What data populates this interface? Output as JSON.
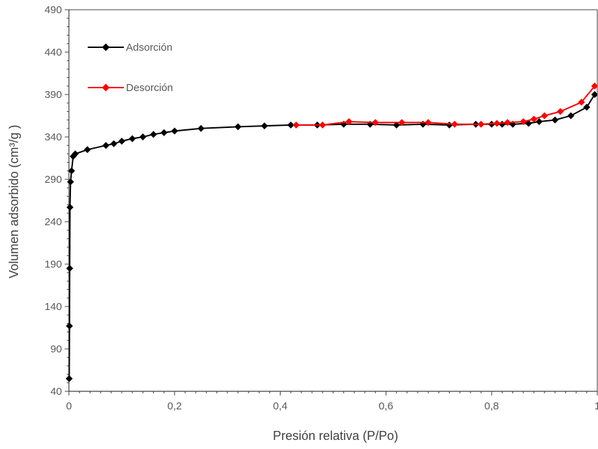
{
  "chart_data": {
    "type": "scatter",
    "xlabel": "Presión relativa (P/Po)",
    "ylabel": "Volumen adsorbido (cm³/g )",
    "xlim": [
      0,
      1
    ],
    "ylim": [
      40,
      490
    ],
    "x_ticks": [
      {
        "value": 0,
        "label": "0"
      },
      {
        "value": 0.2,
        "label": "0,2"
      },
      {
        "value": 0.4,
        "label": "0,4"
      },
      {
        "value": 0.6,
        "label": "0,6"
      },
      {
        "value": 0.8,
        "label": "0,8"
      },
      {
        "value": 1,
        "label": "1"
      }
    ],
    "y_ticks": [
      {
        "value": 40,
        "label": "40"
      },
      {
        "value": 90,
        "label": "90"
      },
      {
        "value": 140,
        "label": "140"
      },
      {
        "value": 190,
        "label": "190"
      },
      {
        "value": 240,
        "label": "240"
      },
      {
        "value": 290,
        "label": "290"
      },
      {
        "value": 340,
        "label": "340"
      },
      {
        "value": 390,
        "label": "390"
      },
      {
        "value": 440,
        "label": "440"
      },
      {
        "value": 490,
        "label": "490"
      }
    ],
    "grid": false,
    "legend": "top-left",
    "series": [
      {
        "name": "Adsorción",
        "color": "#000000",
        "marker": "diamond",
        "x": [
          0.0005,
          0.001,
          0.0015,
          0.002,
          0.003,
          0.005,
          0.008,
          0.012,
          0.035,
          0.07,
          0.085,
          0.1,
          0.12,
          0.14,
          0.16,
          0.18,
          0.2,
          0.25,
          0.32,
          0.37,
          0.42,
          0.47,
          0.52,
          0.57,
          0.62,
          0.67,
          0.72,
          0.77,
          0.8,
          0.82,
          0.84,
          0.87,
          0.89,
          0.92,
          0.95,
          0.98,
          0.995
        ],
        "y": [
          55,
          117,
          185,
          257,
          287,
          300,
          317,
          320,
          325,
          330,
          332,
          335,
          338,
          340,
          343,
          345,
          347,
          350,
          352,
          353,
          354,
          354,
          355,
          355,
          354,
          355,
          354,
          355,
          355,
          355,
          355,
          356,
          358,
          360,
          365,
          375,
          390
        ]
      },
      {
        "name": "Desorción",
        "color": "#ff0000",
        "marker": "diamond",
        "x": [
          0.43,
          0.48,
          0.53,
          0.58,
          0.63,
          0.68,
          0.73,
          0.78,
          0.81,
          0.83,
          0.86,
          0.88,
          0.9,
          0.93,
          0.97,
          0.995
        ],
        "y": [
          354,
          354,
          358,
          357,
          357,
          357,
          355,
          355,
          356,
          357,
          358,
          361,
          365,
          370,
          381,
          400
        ]
      }
    ]
  }
}
